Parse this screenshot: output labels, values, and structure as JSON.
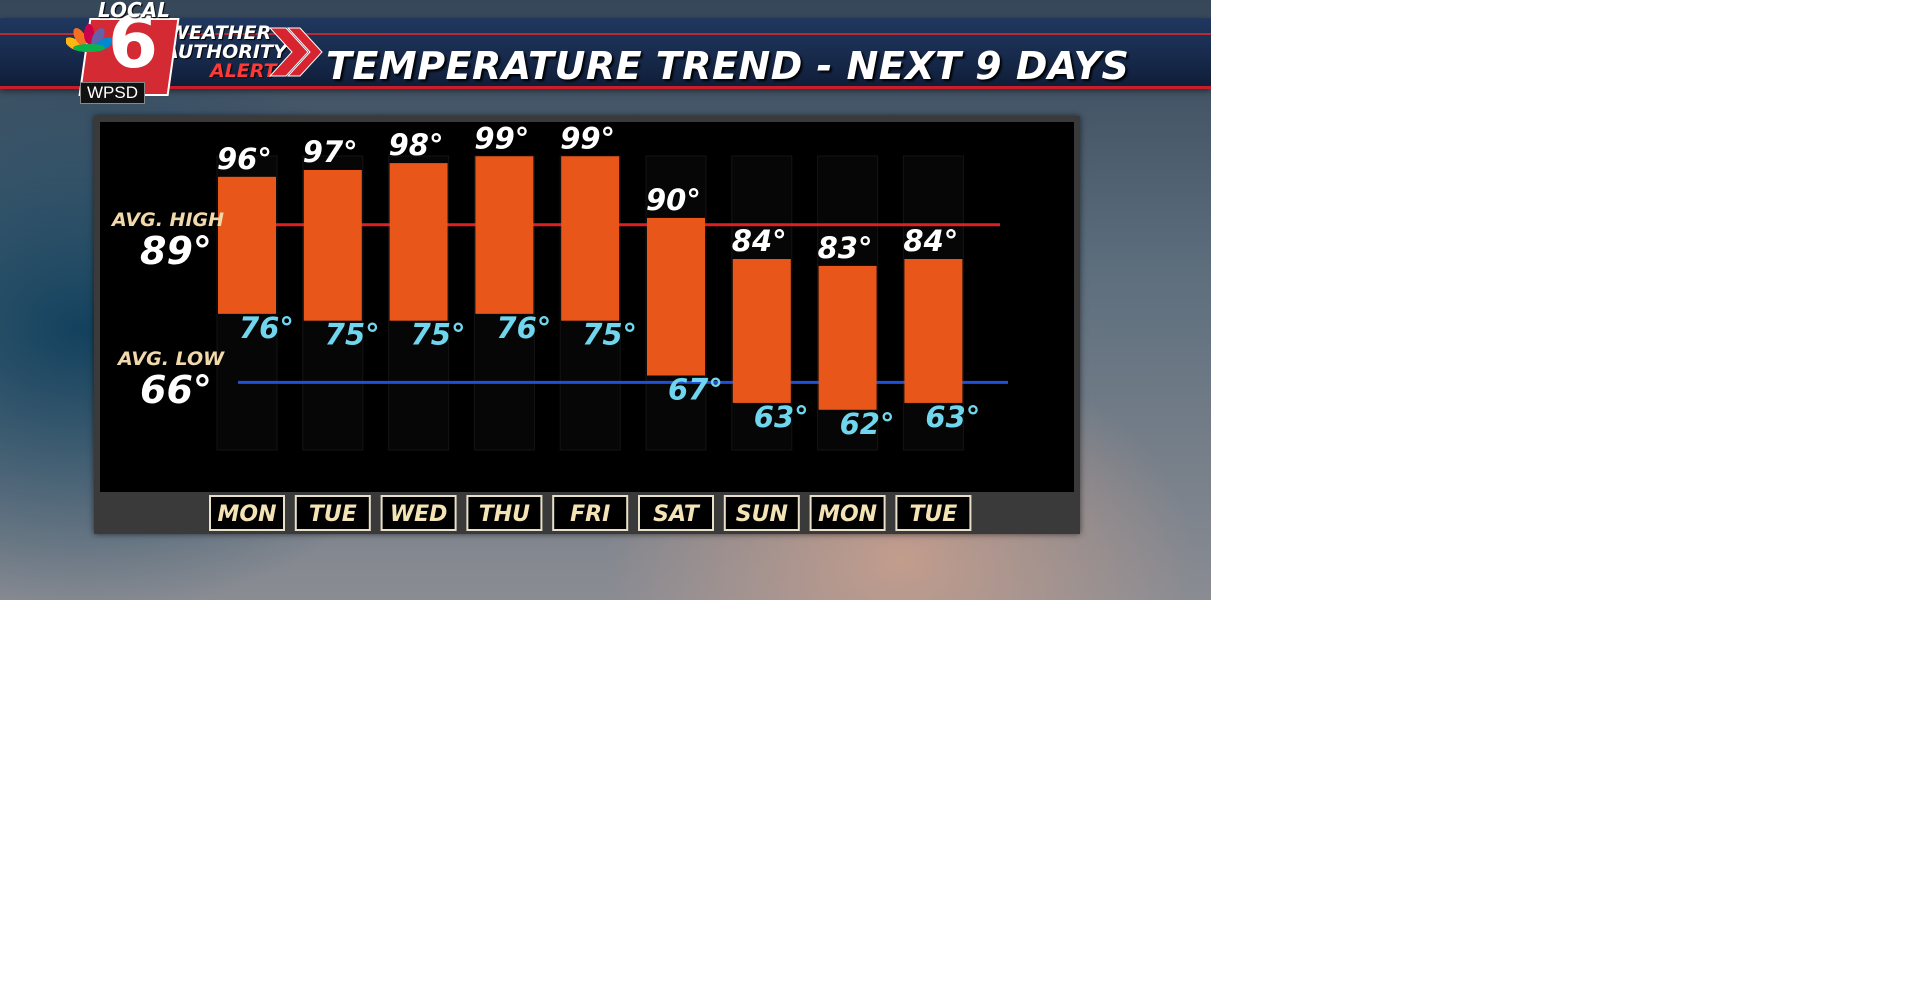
{
  "header": {
    "title": "TEMPERATURE TREND - NEXT 9 DAYS",
    "alert_line1": "WEATHER",
    "alert_line2": "AUTHORITY",
    "alert_line3": "ALERT",
    "logo_top": "LOCAL",
    "logo_digit": "6",
    "logo_station": "WPSD",
    "colors": {
      "banner": "#1b2f55",
      "accent_red": "#c81e2a"
    }
  },
  "chart_data": {
    "type": "bar",
    "categories": [
      "MON",
      "TUE",
      "WED",
      "THU",
      "FRI",
      "SAT",
      "SUN",
      "MON",
      "TUE"
    ],
    "series": [
      {
        "values_high": [
          96,
          97,
          98,
          99,
          99,
          90,
          84,
          83,
          84
        ],
        "values_low": [
          76,
          75,
          75,
          76,
          75,
          67,
          63,
          62,
          63
        ]
      }
    ],
    "high_labels": [
      "96°",
      "97°",
      "98°",
      "99°",
      "99°",
      "90°",
      "84°",
      "83°",
      "84°"
    ],
    "low_labels": [
      "76°",
      "75°",
      "75°",
      "76°",
      "75°",
      "67°",
      "63°",
      "62°",
      "63°"
    ],
    "avg_high": {
      "label": "AVG. HIGH",
      "value": 89,
      "display": "89°",
      "color": "#e02020"
    },
    "avg_low": {
      "label": "AVG. LOW",
      "value": 66,
      "display": "66°",
      "color": "#2050d8"
    },
    "bar_color": "#e8561a",
    "ylim": [
      50,
      104
    ],
    "grid": false,
    "xlabel": "",
    "ylabel": ""
  }
}
